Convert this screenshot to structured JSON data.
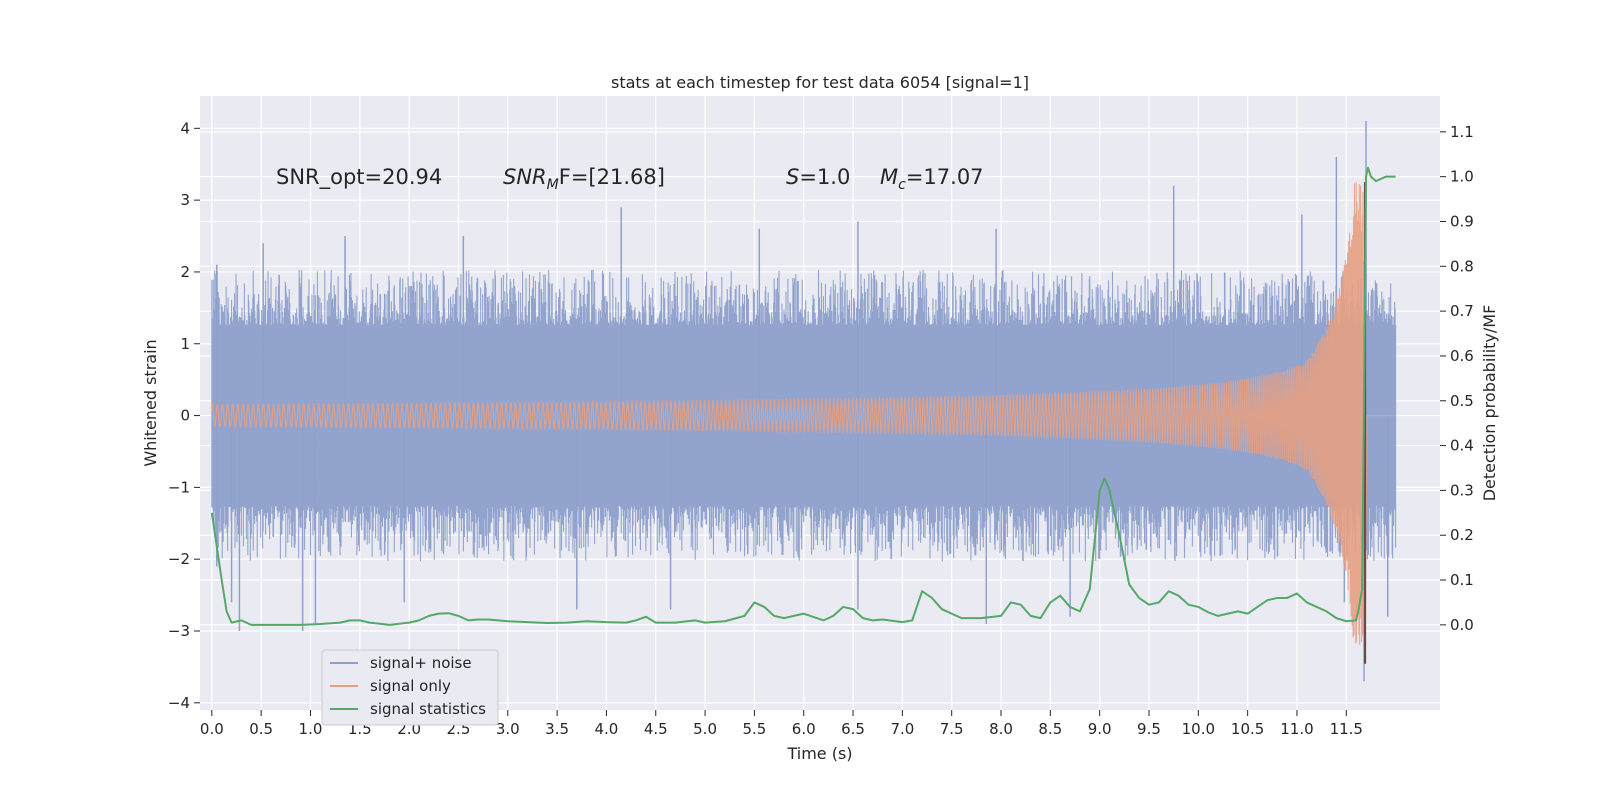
{
  "chart_data": {
    "type": "line",
    "title": "stats at each timestep for test data 6054 [signal=1]",
    "xlabel": "Time (s)",
    "ylabel": "Whitened strain",
    "y2label": "Detection probability/MF",
    "xlim": [
      -0.12,
      12.45
    ],
    "ylim": [
      -4.1,
      4.45
    ],
    "y2lim": [
      -0.19,
      1.18
    ],
    "xticks": [
      "0.0",
      "0.5",
      "1.0",
      "1.5",
      "2.0",
      "2.5",
      "3.0",
      "3.5",
      "4.0",
      "4.5",
      "5.0",
      "5.5",
      "6.0",
      "6.5",
      "7.0",
      "7.5",
      "8.0",
      "8.5",
      "9.0",
      "9.5",
      "10.0",
      "10.5",
      "11.0",
      "11.5"
    ],
    "yticks": [
      "4",
      "3",
      "2",
      "1",
      "0",
      "−1",
      "−2",
      "−3",
      "−4"
    ],
    "y2ticks": [
      "1.1",
      "1.0",
      "0.9",
      "0.8",
      "0.7",
      "0.6",
      "0.5",
      "0.4",
      "0.3",
      "0.2",
      "0.1",
      "0.0"
    ],
    "grid": true,
    "legend_position": "lower-left",
    "annotations": {
      "snr_opt": "SNR_opt=20.94",
      "snr_mf_name": "SNR",
      "snr_mf_sub": "M",
      "snr_mf_rest": "F=[21.68]",
      "s_name": "S",
      "s_rest": "=1.0",
      "mc_name": "M",
      "mc_sub": "c",
      "mc_rest": "=17.07"
    },
    "series": [
      {
        "name": "signal+ noise",
        "color": "#8da0cb",
        "kind": "noise-envelope",
        "x_range": [
          0.0,
          12.0
        ],
        "typical_amplitude": 1.4,
        "peaks": [
          {
            "x": 0.05,
            "y": 2.1
          },
          {
            "x": 0.52,
            "y": 2.4
          },
          {
            "x": 1.35,
            "y": 2.5
          },
          {
            "x": 2.55,
            "y": 2.5
          },
          {
            "x": 4.15,
            "y": 2.9
          },
          {
            "x": 5.55,
            "y": 2.6
          },
          {
            "x": 6.55,
            "y": 2.7
          },
          {
            "x": 7.95,
            "y": 2.6
          },
          {
            "x": 9.75,
            "y": 3.2
          },
          {
            "x": 11.05,
            "y": 2.8
          },
          {
            "x": 11.4,
            "y": 3.6
          },
          {
            "x": 11.7,
            "y": 4.1
          }
        ],
        "troughs": [
          {
            "x": 0.05,
            "y": -2.1
          },
          {
            "x": 0.2,
            "y": -2.6
          },
          {
            "x": 0.28,
            "y": -3.0
          },
          {
            "x": 0.92,
            "y": -3.0
          },
          {
            "x": 1.05,
            "y": -2.9
          },
          {
            "x": 1.95,
            "y": -2.6
          },
          {
            "x": 3.7,
            "y": -2.7
          },
          {
            "x": 4.65,
            "y": -2.7
          },
          {
            "x": 6.55,
            "y": -2.7
          },
          {
            "x": 7.85,
            "y": -2.9
          },
          {
            "x": 8.7,
            "y": -2.8
          },
          {
            "x": 11.48,
            "y": -2.6
          },
          {
            "x": 11.68,
            "y": -3.7
          },
          {
            "x": 11.92,
            "y": -2.8
          }
        ]
      },
      {
        "name": "signal only",
        "color": "#e5a083",
        "kind": "chirp",
        "x_range": [
          0.0,
          12.0
        ],
        "merger_time": 11.69,
        "peak_amplitude": 3.25,
        "min_amplitude": -3.4
      },
      {
        "name": "signal statistics",
        "color": "#55a868",
        "axis": "right",
        "x": [
          0.0,
          0.1,
          0.15,
          0.2,
          0.3,
          0.4,
          0.5,
          0.7,
          0.9,
          1.1,
          1.3,
          1.4,
          1.5,
          1.6,
          1.8,
          2.0,
          2.1,
          2.2,
          2.3,
          2.4,
          2.5,
          2.6,
          2.7,
          2.8,
          3.0,
          3.2,
          3.4,
          3.6,
          3.8,
          4.0,
          4.2,
          4.3,
          4.4,
          4.5,
          4.7,
          4.9,
          5.0,
          5.2,
          5.4,
          5.5,
          5.6,
          5.7,
          5.8,
          6.0,
          6.2,
          6.3,
          6.4,
          6.5,
          6.6,
          6.7,
          6.8,
          7.0,
          7.1,
          7.2,
          7.3,
          7.4,
          7.6,
          7.8,
          8.0,
          8.1,
          8.2,
          8.3,
          8.4,
          8.5,
          8.6,
          8.7,
          8.8,
          8.9,
          9.0,
          9.05,
          9.1,
          9.2,
          9.3,
          9.4,
          9.5,
          9.6,
          9.7,
          9.8,
          9.9,
          10.0,
          10.1,
          10.2,
          10.3,
          10.4,
          10.5,
          10.6,
          10.7,
          10.8,
          10.9,
          11.0,
          11.1,
          11.2,
          11.3,
          11.4,
          11.5,
          11.6,
          11.63,
          11.66,
          11.68,
          11.7,
          11.72,
          11.75,
          11.8,
          11.9,
          12.0
        ],
        "y": [
          0.25,
          0.1,
          0.03,
          0.005,
          0.01,
          0.0,
          0.0,
          0.0,
          0.0,
          0.002,
          0.005,
          0.01,
          0.01,
          0.005,
          0.0,
          0.005,
          0.01,
          0.02,
          0.025,
          0.026,
          0.02,
          0.01,
          0.012,
          0.012,
          0.008,
          0.006,
          0.004,
          0.005,
          0.008,
          0.006,
          0.005,
          0.01,
          0.018,
          0.005,
          0.005,
          0.01,
          0.005,
          0.008,
          0.02,
          0.05,
          0.04,
          0.02,
          0.015,
          0.025,
          0.01,
          0.02,
          0.04,
          0.035,
          0.015,
          0.01,
          0.012,
          0.006,
          0.01,
          0.075,
          0.06,
          0.035,
          0.015,
          0.015,
          0.02,
          0.05,
          0.045,
          0.02,
          0.015,
          0.05,
          0.065,
          0.04,
          0.03,
          0.08,
          0.3,
          0.327,
          0.3,
          0.2,
          0.09,
          0.06,
          0.045,
          0.05,
          0.075,
          0.065,
          0.045,
          0.04,
          0.028,
          0.02,
          0.025,
          0.03,
          0.025,
          0.04,
          0.055,
          0.06,
          0.06,
          0.07,
          0.05,
          0.04,
          0.03,
          0.015,
          0.008,
          0.01,
          0.04,
          0.08,
          0.5,
          1.0,
          1.02,
          1.0,
          0.99,
          1.0,
          1.0
        ]
      }
    ]
  }
}
